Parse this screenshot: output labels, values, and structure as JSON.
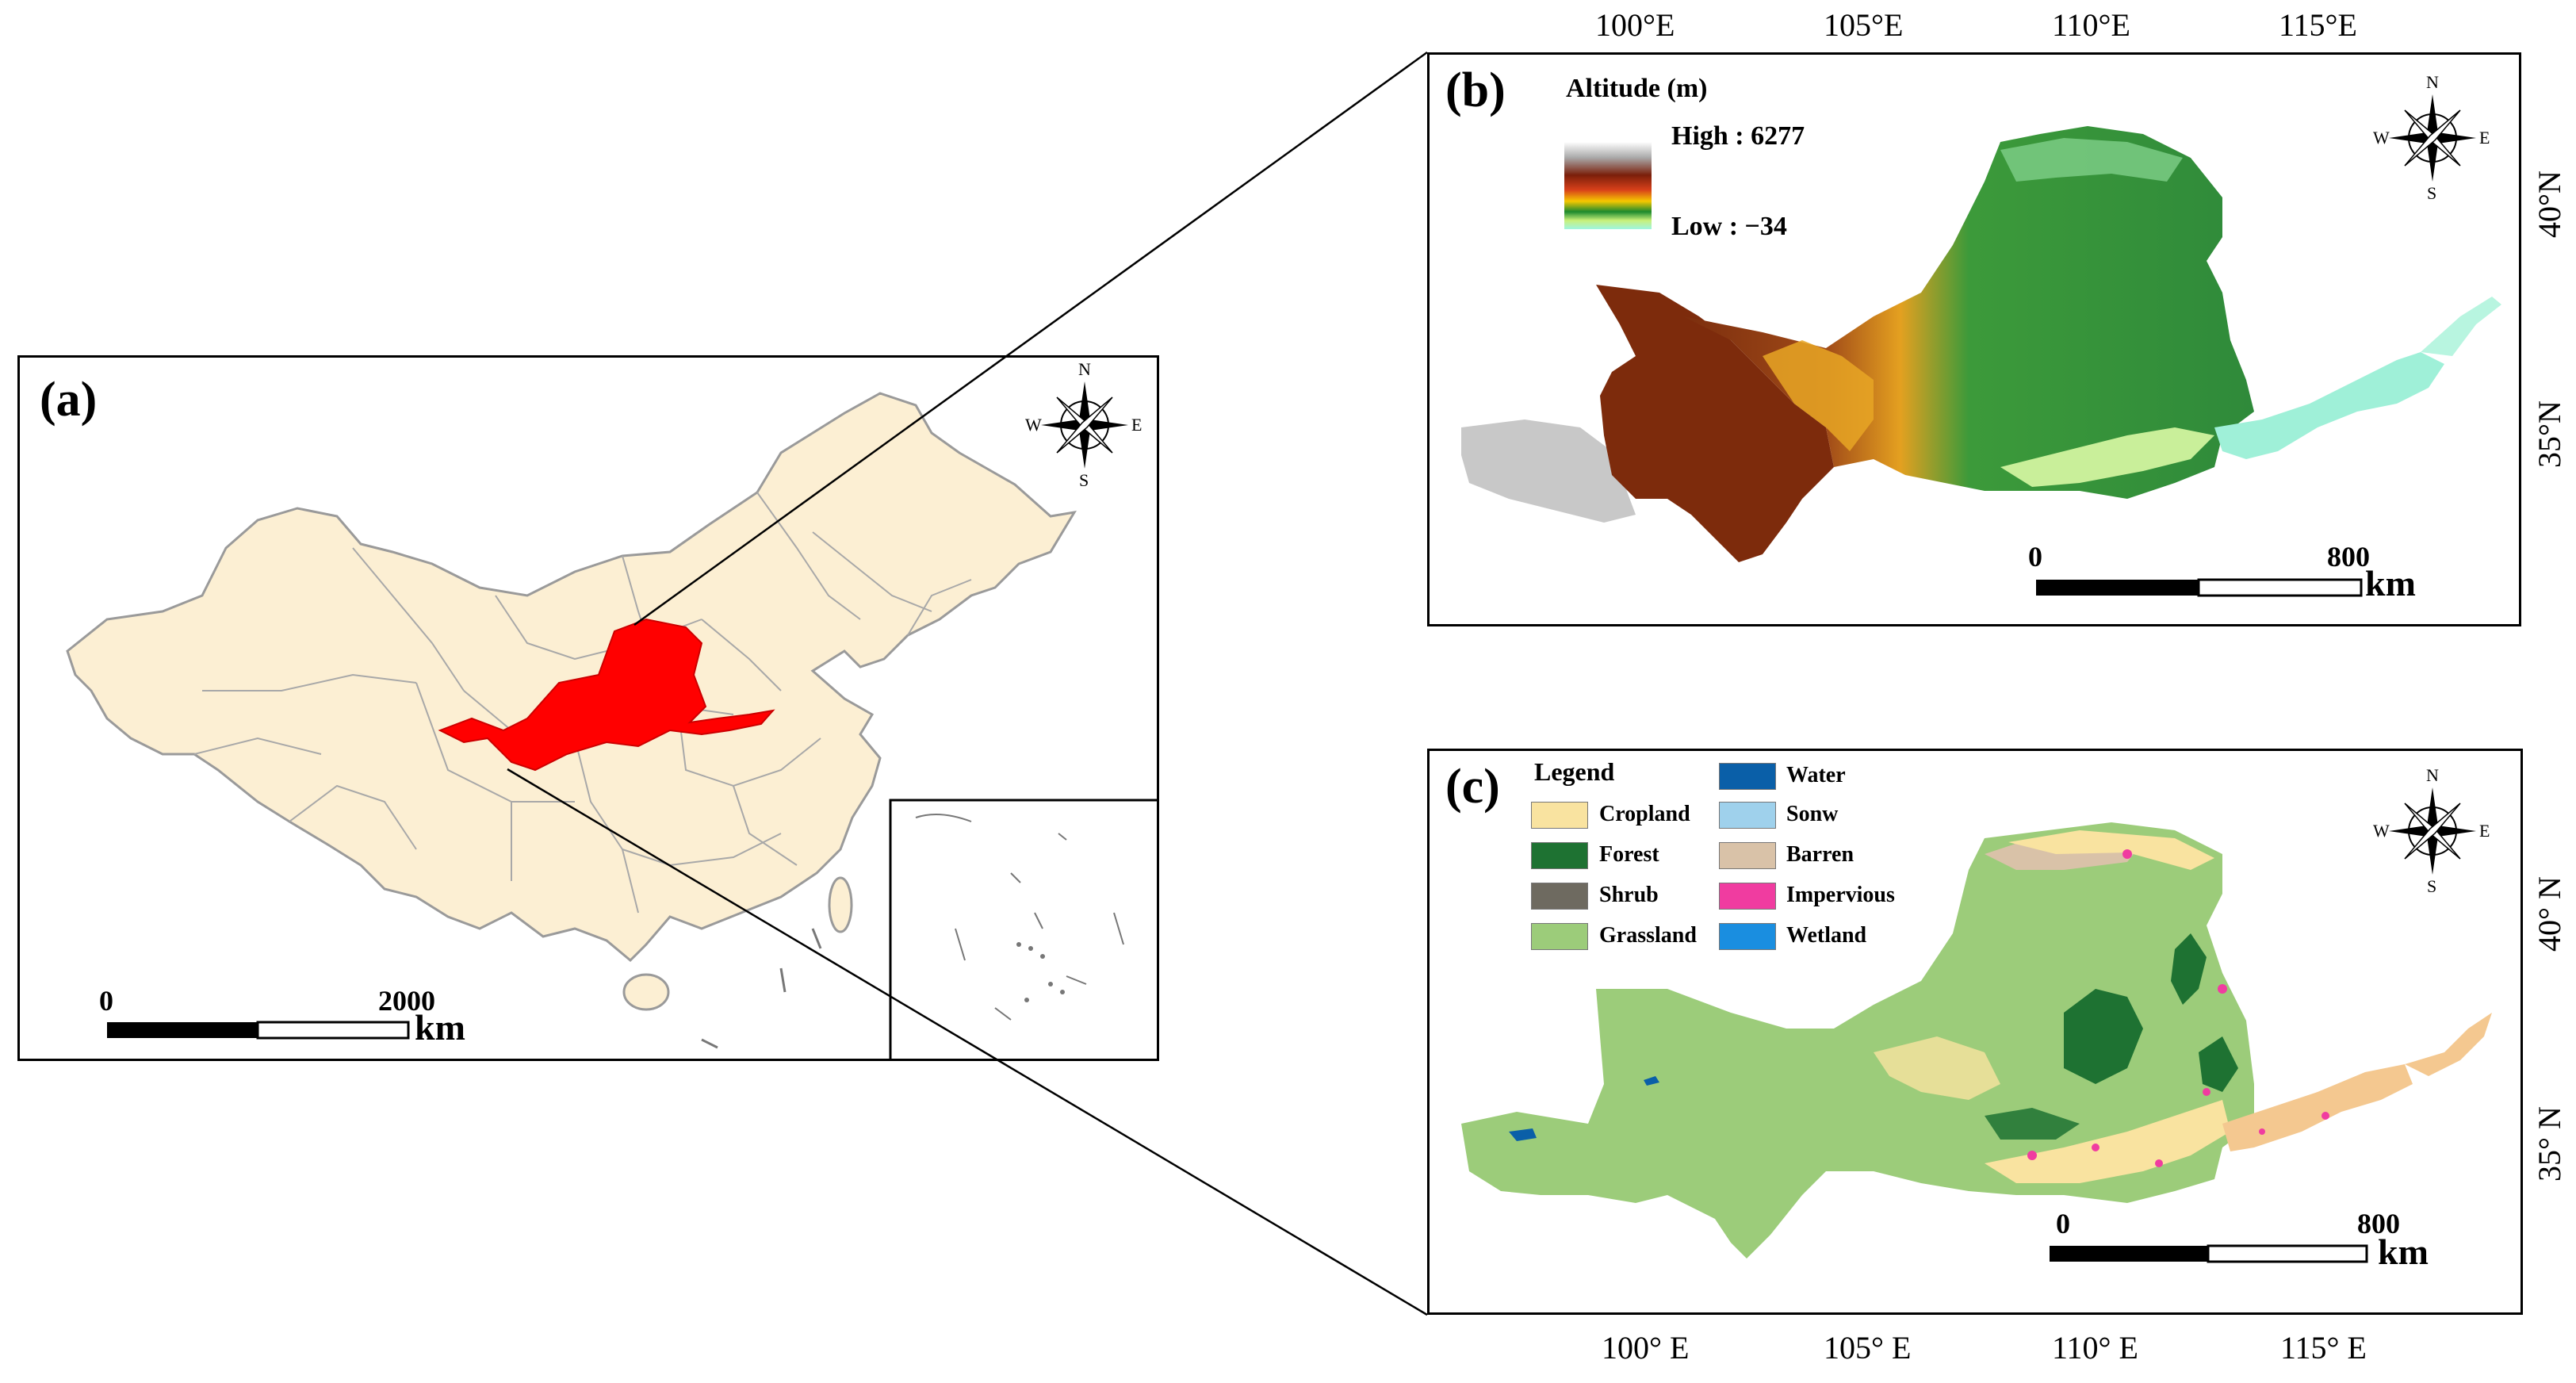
{
  "panel_a": {
    "label": "(a)",
    "scale": {
      "start": "0",
      "end": "2000",
      "unit": "km"
    },
    "compass": {
      "n": "N",
      "s": "S",
      "e": "E",
      "w": "W"
    }
  },
  "panel_b": {
    "label": "(b)",
    "legend": {
      "title": "Altitude (m)",
      "high": "High : 6277",
      "low": "Low : −34"
    },
    "scale": {
      "start": "0",
      "end": "800",
      "unit": "km"
    },
    "compass": {
      "n": "N",
      "s": "S",
      "e": "E",
      "w": "W"
    },
    "lon_ticks": [
      "100°E",
      "105°E",
      "110°E",
      "115°E"
    ],
    "lat_ticks": [
      "40°N",
      "35°N"
    ]
  },
  "panel_c": {
    "label": "(c)",
    "legend_title": "Legend",
    "legend": [
      {
        "label": "Cropland",
        "color": "#f9e3a0"
      },
      {
        "label": "Water",
        "color": "#0a5fa8"
      },
      {
        "label": "Forest",
        "color": "#1e7232"
      },
      {
        "label": "Sonw",
        "color": "#9fd1ec"
      },
      {
        "label": "Shrub",
        "color": "#6e6a60"
      },
      {
        "label": "Barren",
        "color": "#d9c2a8"
      },
      {
        "label": "Grassland",
        "color": "#9ccc7a"
      },
      {
        "label": "Impervious",
        "color": "#f03ca0"
      },
      {
        "label": "Wetland",
        "color": "#1a8ee0"
      }
    ],
    "scale": {
      "start": "0",
      "end": "800",
      "unit": "km"
    },
    "compass": {
      "n": "N",
      "s": "S",
      "e": "E",
      "w": "W"
    },
    "lon_ticks": [
      "100° E",
      "105° E",
      "110° E",
      "115° E"
    ],
    "lat_ticks": [
      "40° N",
      "35° N"
    ]
  }
}
